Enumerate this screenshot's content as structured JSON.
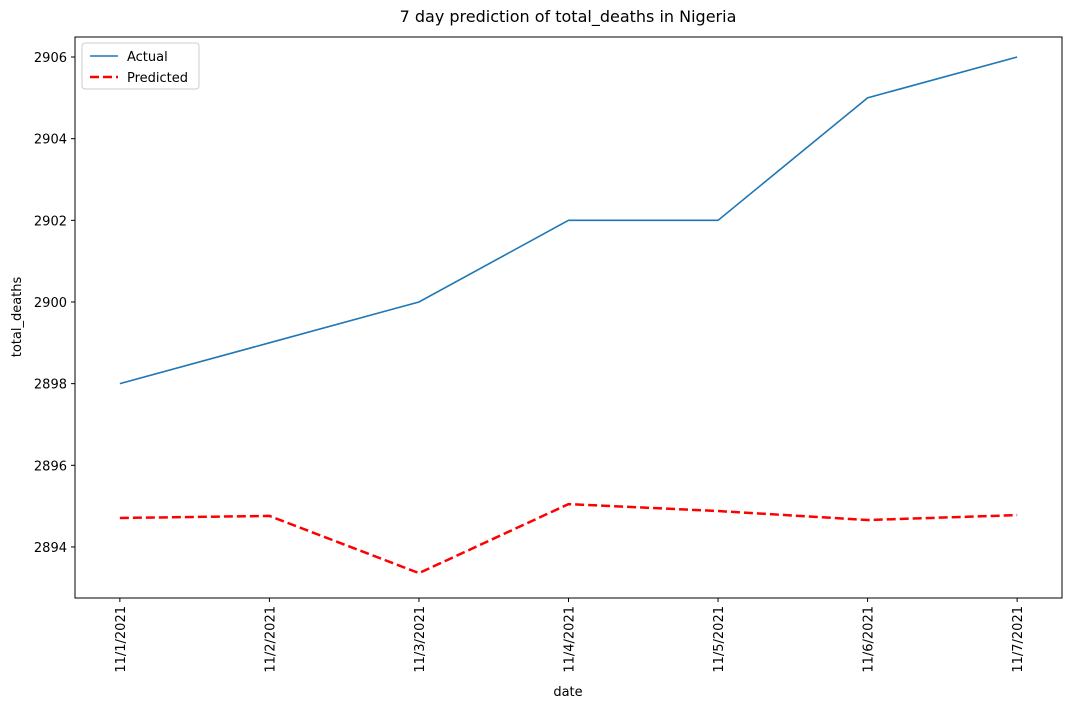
{
  "chart_data": {
    "type": "line",
    "title": "7 day prediction of total_deaths in Nigeria",
    "x_label": "date",
    "y_label": "total_deaths",
    "categories": [
      "11/1/2021",
      "11/2/2021",
      "11/3/2021",
      "11/4/2021",
      "11/5/2021",
      "11/6/2021",
      "11/7/2021"
    ],
    "series": [
      {
        "name": "Actual",
        "color": "#1f77b4",
        "dash": false,
        "values": [
          2898,
          2899,
          2900,
          2902,
          2902,
          2905,
          2906
        ]
      },
      {
        "name": "Predicted",
        "color": "#ff0000",
        "dash": true,
        "values": [
          2894.71,
          2894.76,
          2893.36,
          2895.05,
          2894.88,
          2894.66,
          2894.78
        ]
      }
    ],
    "ylim": [
      2892.75,
      2906.49
    ],
    "yticks": [
      2894,
      2896,
      2898,
      2900,
      2902,
      2904,
      2906
    ],
    "legend": "upper-left"
  }
}
